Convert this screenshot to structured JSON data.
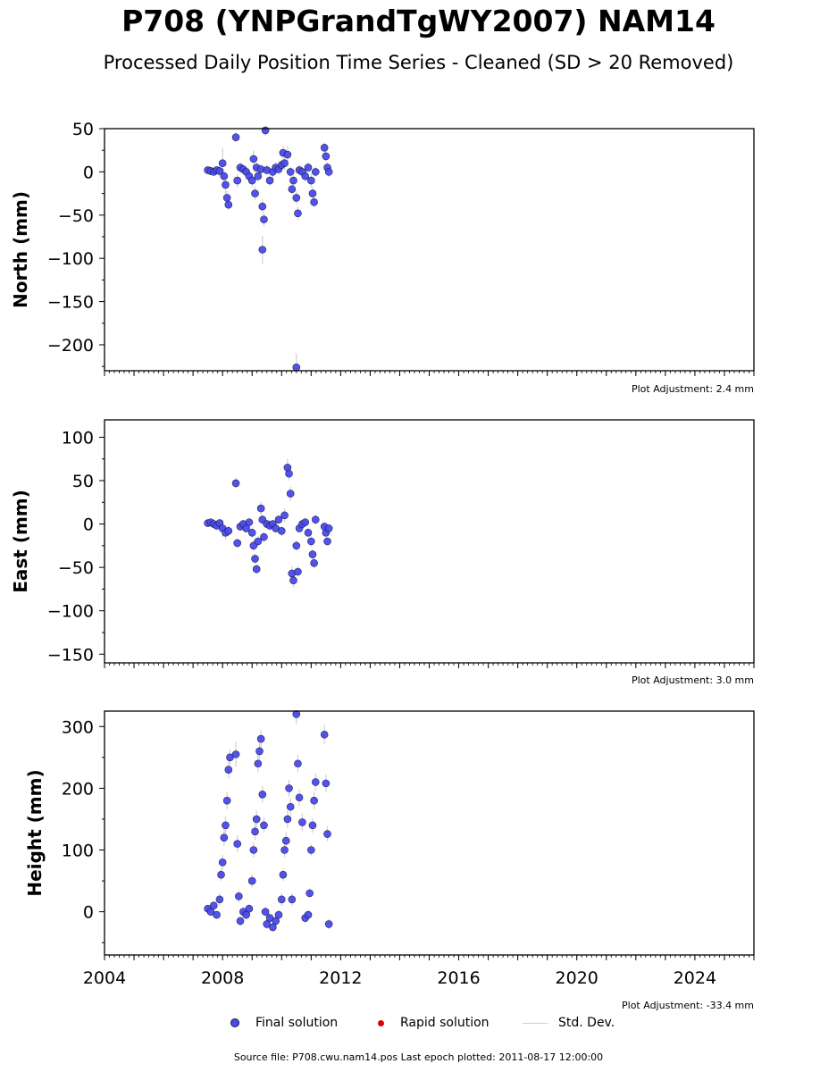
{
  "title": "P708 (YNPGrandTgWY2007) NAM14",
  "subtitle": "Processed Daily Position Time Series - Cleaned (SD > 20 Removed)",
  "footer": "Source file: P708.cwu.nam14.pos  Last epoch plotted: 2011-08-17 12:00:00",
  "legend": {
    "final_label": "Final solution",
    "rapid_label": "Rapid solution",
    "std_label": "Std. Dev."
  },
  "colors": {
    "final": "#4a4af0",
    "final_edge": "#1a1a44",
    "rapid": "#dd0000",
    "std": "#d0d0d0"
  },
  "chart_data": [
    {
      "type": "scatter",
      "ylabel": "North (mm)",
      "ylim": [
        -230,
        50
      ],
      "yticks": [
        50,
        0,
        -50,
        -100,
        -150,
        -200
      ],
      "ytick_labels": [
        "50",
        "0",
        "−50",
        "−100",
        "−150",
        "−200"
      ],
      "xlim": [
        2004.0,
        2026.0
      ],
      "adjustment": "Plot Adjustment: 2.4 mm",
      "series": [
        {
          "x": [
            2007.5,
            2007.6,
            2007.7,
            2007.8,
            2007.9,
            2008.0,
            2008.05,
            2008.1,
            2008.15,
            2008.2,
            2008.45,
            2008.5,
            2008.6,
            2008.7,
            2008.8,
            2008.9,
            2009.0,
            2009.05,
            2009.1,
            2009.15,
            2009.2,
            2009.3,
            2009.35,
            2009.4,
            2009.45,
            2009.5,
            2009.6,
            2009.7,
            2009.8,
            2009.9,
            2010.0,
            2010.05,
            2010.1,
            2010.2,
            2010.3,
            2010.35,
            2010.4,
            2010.5,
            2010.55,
            2010.6,
            2010.7,
            2010.8,
            2010.9,
            2011.0,
            2011.05,
            2011.1,
            2011.15,
            2011.45,
            2011.5,
            2011.55,
            2011.6,
            2009.35,
            2010.5
          ],
          "y": [
            2,
            1,
            0,
            2,
            1,
            10,
            -5,
            -15,
            -30,
            -38,
            40,
            -10,
            5,
            3,
            0,
            -5,
            -10,
            15,
            -25,
            5,
            -5,
            3,
            -40,
            -55,
            48,
            2,
            -10,
            0,
            5,
            3,
            8,
            22,
            10,
            20,
            0,
            -20,
            -10,
            -30,
            -48,
            2,
            0,
            -5,
            5,
            -10,
            -25,
            -35,
            0,
            28,
            18,
            5,
            0,
            -90,
            -226
          ],
          "err": [
            4,
            5,
            4,
            4,
            6,
            18,
            8,
            10,
            8,
            6,
            6,
            8,
            6,
            5,
            6,
            6,
            8,
            10,
            8,
            6,
            6,
            6,
            8,
            8,
            6,
            6,
            6,
            8,
            6,
            6,
            6,
            8,
            8,
            10,
            6,
            6,
            6,
            8,
            8,
            6,
            6,
            6,
            6,
            8,
            8,
            6,
            6,
            6,
            6,
            6,
            6,
            16,
            16
          ]
        }
      ]
    },
    {
      "type": "scatter",
      "ylabel": "East (mm)",
      "ylim": [
        -160,
        120
      ],
      "yticks": [
        100,
        50,
        0,
        -50,
        -100,
        -150
      ],
      "ytick_labels": [
        "100",
        "50",
        "0",
        "−50",
        "−100",
        "−150"
      ],
      "xlim": [
        2004.0,
        2026.0
      ],
      "adjustment": "Plot Adjustment: 3.0 mm",
      "series": [
        {
          "x": [
            2007.5,
            2007.6,
            2007.7,
            2007.8,
            2007.9,
            2008.0,
            2008.1,
            2008.2,
            2008.45,
            2008.5,
            2008.6,
            2008.7,
            2008.8,
            2008.9,
            2009.0,
            2009.05,
            2009.1,
            2009.15,
            2009.2,
            2009.3,
            2009.35,
            2009.4,
            2009.5,
            2009.6,
            2009.7,
            2009.8,
            2009.9,
            2010.0,
            2010.1,
            2010.2,
            2010.25,
            2010.3,
            2010.35,
            2010.4,
            2010.5,
            2010.55,
            2010.6,
            2010.7,
            2010.8,
            2010.9,
            2011.0,
            2011.05,
            2011.1,
            2011.15,
            2011.45,
            2011.5,
            2011.55,
            2011.6
          ],
          "y": [
            1,
            2,
            0,
            -2,
            1,
            -5,
            -10,
            -8,
            47,
            -22,
            -3,
            0,
            -5,
            2,
            -10,
            -25,
            -40,
            -52,
            -20,
            18,
            5,
            -15,
            0,
            -2,
            0,
            -5,
            5,
            -8,
            10,
            65,
            58,
            35,
            -57,
            -65,
            -25,
            -55,
            -5,
            0,
            2,
            -10,
            -20,
            -35,
            -45,
            5,
            -3,
            -10,
            -20,
            -5
          ],
          "err": [
            4,
            4,
            4,
            4,
            5,
            10,
            8,
            6,
            6,
            6,
            5,
            5,
            5,
            5,
            6,
            6,
            6,
            6,
            6,
            8,
            6,
            6,
            5,
            5,
            5,
            5,
            5,
            6,
            8,
            10,
            8,
            8,
            8,
            8,
            6,
            6,
            5,
            5,
            5,
            5,
            6,
            6,
            6,
            6,
            5,
            5,
            5,
            5
          ]
        }
      ]
    },
    {
      "type": "scatter",
      "ylabel": "Height (mm)",
      "ylim": [
        -70,
        325
      ],
      "yticks": [
        300,
        200,
        100,
        0
      ],
      "ytick_labels": [
        "300",
        "200",
        "100",
        "0"
      ],
      "xlim": [
        2004.0,
        2026.0
      ],
      "xticks": [
        2004,
        2008,
        2012,
        2016,
        2020,
        2024
      ],
      "xtick_labels": [
        "2004",
        "2008",
        "2012",
        "2016",
        "2020",
        "2024"
      ],
      "adjustment": "Plot Adjustment: -33.4 mm",
      "series": [
        {
          "x": [
            2007.5,
            2007.6,
            2007.7,
            2007.8,
            2007.9,
            2007.95,
            2008.0,
            2008.05,
            2008.1,
            2008.15,
            2008.2,
            2008.25,
            2008.45,
            2008.5,
            2008.55,
            2008.6,
            2008.7,
            2008.8,
            2008.9,
            2009.0,
            2009.05,
            2009.1,
            2009.15,
            2009.2,
            2009.25,
            2009.3,
            2009.35,
            2009.4,
            2009.45,
            2009.5,
            2009.6,
            2009.7,
            2009.8,
            2009.9,
            2010.0,
            2010.05,
            2010.1,
            2010.15,
            2010.2,
            2010.25,
            2010.3,
            2010.35,
            2010.5,
            2010.55,
            2010.6,
            2010.7,
            2010.8,
            2010.9,
            2010.95,
            2011.0,
            2011.05,
            2011.1,
            2011.15,
            2011.45,
            2011.5,
            2011.55,
            2011.6
          ],
          "y": [
            5,
            0,
            10,
            -5,
            20,
            60,
            80,
            120,
            140,
            180,
            230,
            250,
            255,
            110,
            25,
            -15,
            0,
            -5,
            5,
            50,
            100,
            130,
            150,
            240,
            260,
            280,
            190,
            140,
            0,
            -20,
            -10,
            -25,
            -15,
            -5,
            20,
            60,
            100,
            115,
            150,
            200,
            170,
            20,
            320,
            240,
            185,
            145,
            -10,
            -5,
            30,
            100,
            140,
            180,
            210,
            287,
            208,
            126,
            -20
          ],
          "err": [
            5,
            5,
            6,
            6,
            10,
            10,
            12,
            14,
            14,
            14,
            14,
            14,
            20,
            14,
            10,
            8,
            8,
            8,
            8,
            10,
            12,
            14,
            14,
            14,
            14,
            14,
            14,
            12,
            8,
            8,
            8,
            8,
            8,
            8,
            10,
            10,
            12,
            14,
            14,
            14,
            14,
            10,
            16,
            14,
            14,
            14,
            8,
            8,
            8,
            10,
            12,
            14,
            14,
            16,
            14,
            12,
            8
          ]
        }
      ]
    }
  ]
}
